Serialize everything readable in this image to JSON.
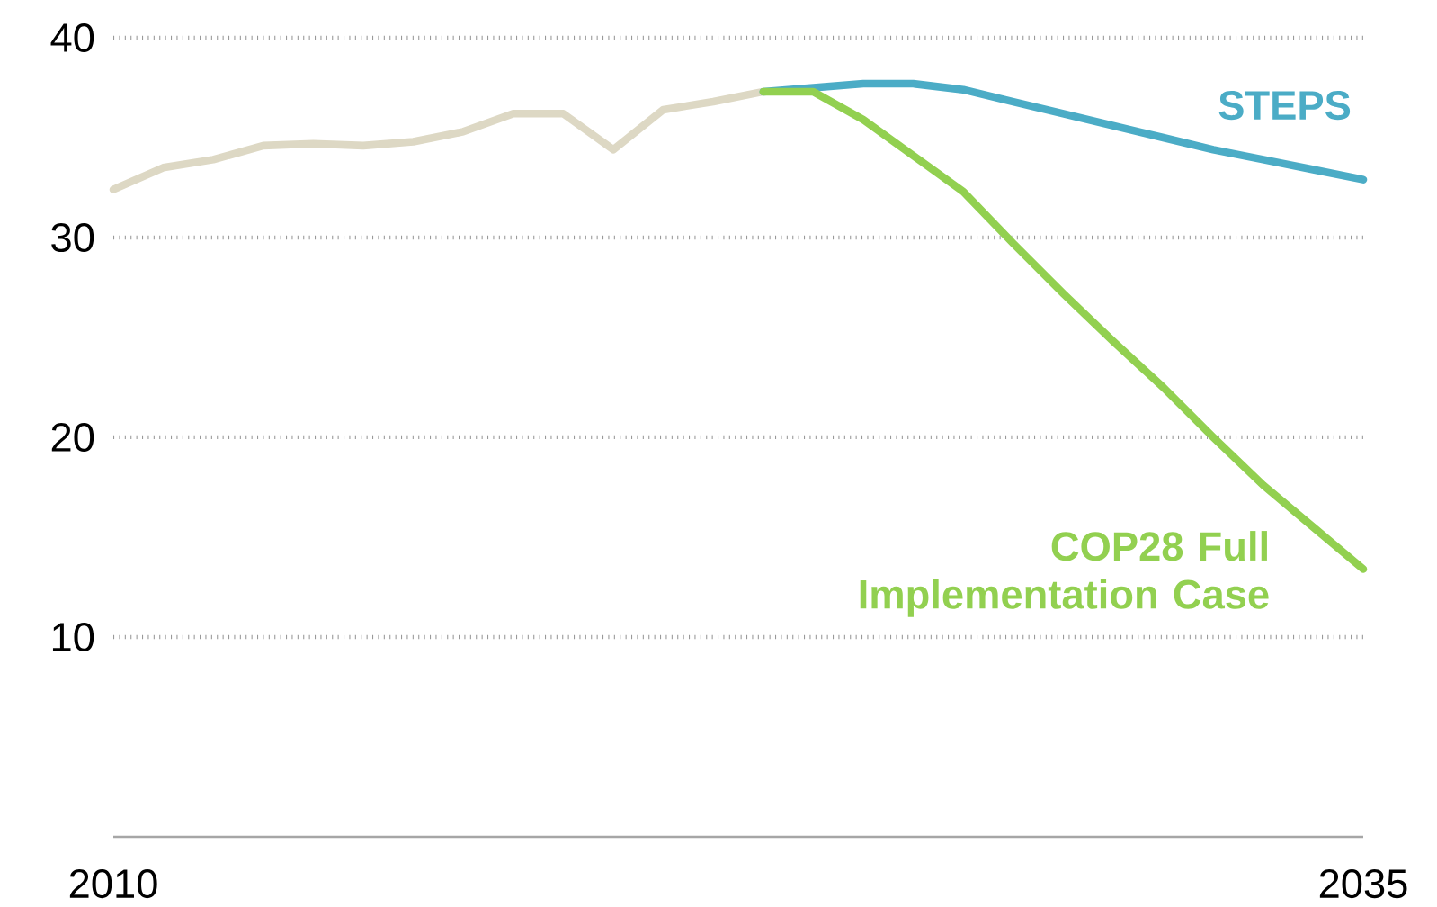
{
  "chart_data": {
    "type": "line",
    "xlim": [
      2010,
      2035
    ],
    "xticks": [
      2010,
      2035
    ],
    "ylim": [
      0,
      40
    ],
    "yticks": [
      10,
      20,
      30,
      40
    ],
    "grid": "y",
    "legend": false,
    "line_style": "solid",
    "marker": "none",
    "series": [
      {
        "color": "#ddd8c4",
        "x": [
          2010,
          2011,
          2012,
          2013,
          2014,
          2015,
          2016,
          2017,
          2018,
          2019,
          2020,
          2021,
          2022,
          2023
        ],
        "values": [
          32.4,
          33.5,
          33.9,
          34.6,
          34.7,
          34.6,
          34.8,
          35.3,
          36.2,
          36.2,
          34.4,
          36.4,
          36.8,
          37.3
        ]
      },
      {
        "name": "STEPS",
        "color": "#4bacc6",
        "x": [
          2023,
          2024,
          2025,
          2026,
          2027,
          2028,
          2029,
          2030,
          2031,
          2032,
          2033,
          2034,
          2035
        ],
        "values": [
          37.3,
          37.5,
          37.7,
          37.7,
          37.4,
          36.8,
          36.2,
          35.6,
          35.0,
          34.4,
          33.9,
          33.4,
          32.9
        ]
      },
      {
        "name": "COP28 Full Implementation Case",
        "color": "#92d050",
        "x": [
          2023,
          2024,
          2025,
          2026,
          2027,
          2028,
          2029,
          2030,
          2031,
          2032,
          2033,
          2034,
          2035
        ],
        "values": [
          37.3,
          37.3,
          35.9,
          34.1,
          32.3,
          29.7,
          27.2,
          24.8,
          22.5,
          20.0,
          17.6,
          15.5,
          13.4
        ]
      }
    ]
  }
}
